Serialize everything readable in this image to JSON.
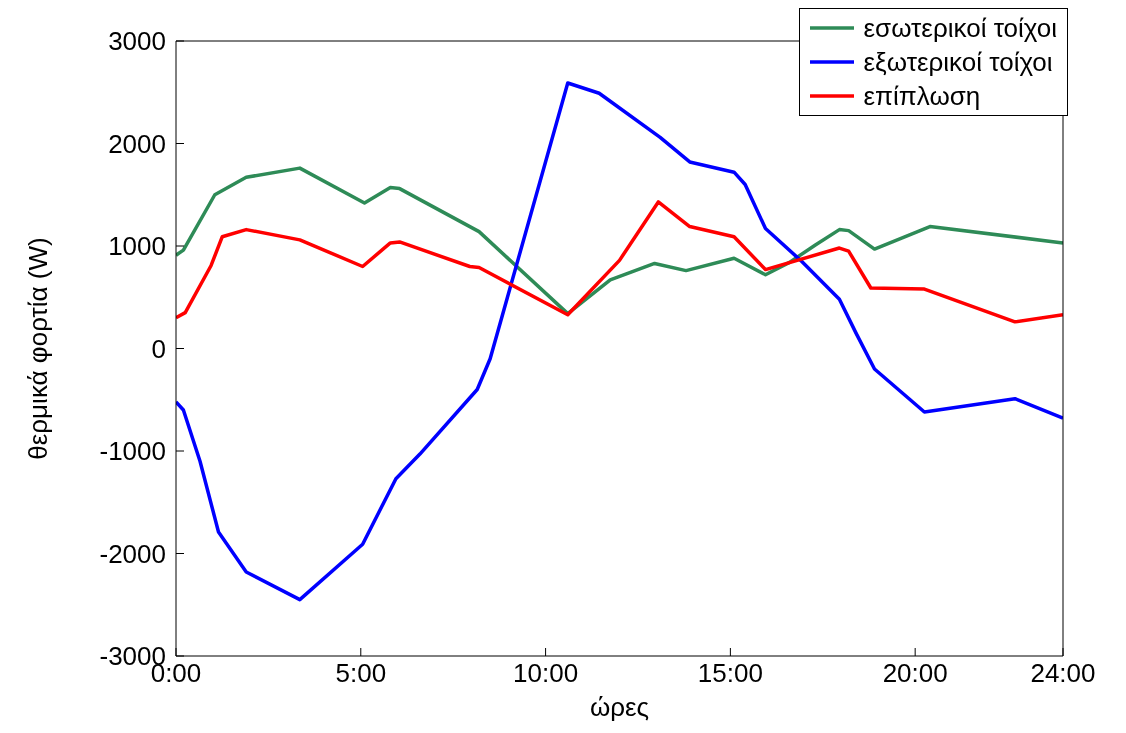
{
  "chart_data": {
    "type": "line",
    "xlabel": "ώρες",
    "ylabel": "θερμικά φορτία (W)",
    "xlim": [
      0,
      24
    ],
    "xticks": [
      {
        "value": 0,
        "label": "0:00"
      },
      {
        "value": 5,
        "label": "5:00"
      },
      {
        "value": 10,
        "label": "10:00"
      },
      {
        "value": 15,
        "label": "15:00"
      },
      {
        "value": 20,
        "label": "20:00"
      },
      {
        "value": 24,
        "label": "24:00"
      }
    ],
    "ylim": [
      -3000,
      3000
    ],
    "yticks": [
      -3000,
      -2000,
      -1000,
      0,
      1000,
      2000,
      3000
    ],
    "grid": false,
    "legend": "top right",
    "marker": "none",
    "line_style": "solid",
    "series": [
      {
        "name": "εσωτερικοί τοίχοι",
        "color": "#2e8b57",
        "x": [
          0,
          0.2,
          1.05,
          1.9,
          3.35,
          5.1,
          5.8,
          6.05,
          8.2,
          10.6,
          11.75,
          12.95,
          13.8,
          15.1,
          15.95,
          16.6,
          17.3,
          17.95,
          18.2,
          18.9,
          20.4,
          24
        ],
        "values": [
          910,
          960,
          1500,
          1670,
          1760,
          1420,
          1570,
          1560,
          1140,
          340,
          670,
          830,
          760,
          880,
          720,
          840,
          1010,
          1160,
          1150,
          970,
          1190,
          1030
        ]
      },
      {
        "name": "εξωτερικοί τοίχοι",
        "color": "#0000ff",
        "x": [
          0,
          0.2,
          0.65,
          1.15,
          1.9,
          3.35,
          5.05,
          5.95,
          6.6,
          8.15,
          8.5,
          10.6,
          11.45,
          13.1,
          13.9,
          15.1,
          15.4,
          15.95,
          16.9,
          17.95,
          18.4,
          18.9,
          20.25,
          22.7,
          24
        ],
        "values": [
          -520,
          -600,
          -1100,
          -1790,
          -2180,
          -2450,
          -1910,
          -1270,
          -1030,
          -400,
          -100,
          2590,
          2490,
          2060,
          1820,
          1720,
          1600,
          1170,
          860,
          480,
          150,
          -200,
          -620,
          -490,
          -680
        ]
      },
      {
        "name": "επίπλωση",
        "color": "#ff0000",
        "x": [
          0,
          0.25,
          0.95,
          1.25,
          1.9,
          3.35,
          5.05,
          5.8,
          6.05,
          7.95,
          8.2,
          10.6,
          12,
          13.05,
          13.9,
          15.1,
          15.95,
          17.95,
          18.2,
          18.8,
          20.25,
          22.7,
          24
        ],
        "values": [
          300,
          350,
          810,
          1090,
          1160,
          1060,
          800,
          1030,
          1040,
          800,
          790,
          330,
          860,
          1430,
          1190,
          1090,
          770,
          980,
          950,
          590,
          580,
          260,
          330
        ]
      }
    ]
  }
}
